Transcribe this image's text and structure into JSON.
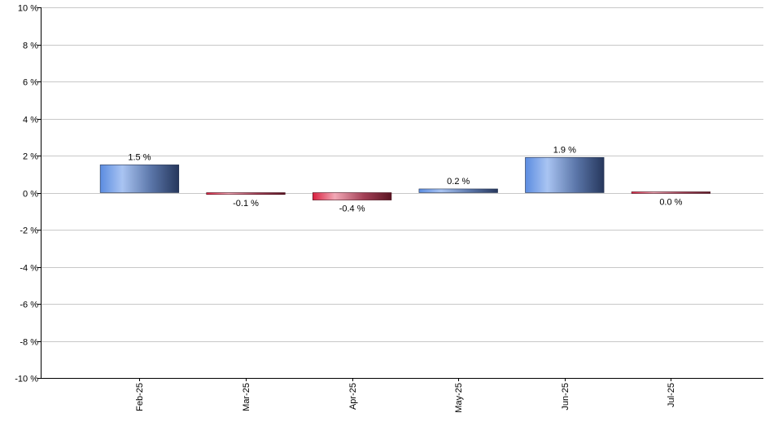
{
  "chart_data": {
    "type": "bar",
    "title": "",
    "xlabel": "",
    "ylabel": "",
    "categories": [
      "Feb-25",
      "Mar-25",
      "Apr-25",
      "May-25",
      "Jun-25",
      "Jul-25"
    ],
    "values": [
      1.5,
      -0.1,
      -0.4,
      0.2,
      1.9,
      0.0
    ],
    "data_labels": [
      "1.5 %",
      "-0.1 %",
      "-0.4 %",
      "0.2 %",
      "1.9 %",
      "0.0 %"
    ],
    "ylim": [
      -10,
      10
    ],
    "y_ticks": [
      10,
      8,
      6,
      4,
      2,
      0,
      -2,
      -4,
      -6,
      -8,
      -10
    ],
    "y_tick_labels": [
      "10 %",
      "8 %",
      "6 %",
      "4 %",
      "2 %",
      "0 %",
      "-2 %",
      "-4 %",
      "-6 %",
      "-8 %",
      "-10 %"
    ],
    "grid": true,
    "legend": "none",
    "colors": {
      "positive_light": "#8fb3f5",
      "positive_mid": "#5b87d9",
      "positive_dark": "#26375c",
      "negative_light": "#f0a0b0",
      "negative_mid": "#d8284c",
      "negative_dark": "#5a1422",
      "grid": "#c8c8c8",
      "axis": "#000000"
    }
  }
}
